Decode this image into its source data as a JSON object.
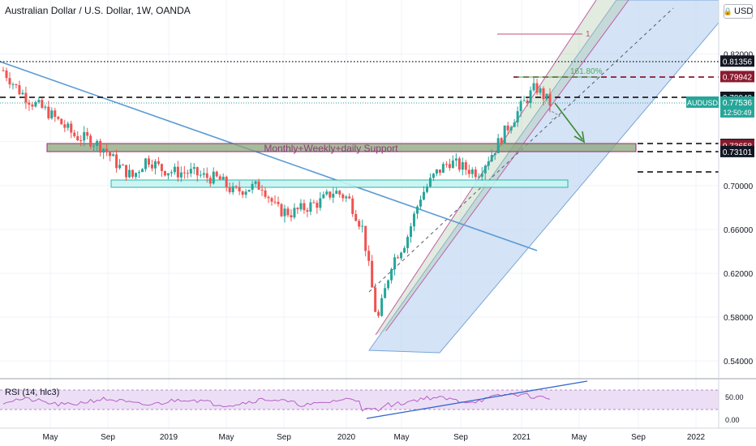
{
  "header": {
    "title": "Australian Dollar / U.S. Dollar, 1W, OANDA",
    "currency_label": "USD"
  },
  "price_axis": {
    "ticks": [
      "0.82000",
      "0.78000",
      "0.74000",
      "0.70000",
      "0.66000",
      "0.62000",
      "0.58000",
      "0.54000"
    ],
    "tick_values": [
      0.82,
      0.78,
      0.74,
      0.7,
      0.66,
      0.62,
      0.58,
      0.54
    ],
    "range": [
      0.515,
      0.855
    ]
  },
  "time_axis": {
    "labels": [
      "May",
      "Sep",
      "2019",
      "May",
      "Sep",
      "2020",
      "May",
      "Sep",
      "2021",
      "May",
      "Sep",
      "2022"
    ]
  },
  "price_tags": [
    {
      "value": "0.81356",
      "style": "dark"
    },
    {
      "value": "0.79942",
      "style": "darkred"
    },
    {
      "value": "0.78049",
      "style": "dark"
    },
    {
      "value": "0.77536",
      "style": "teal",
      "symbol": "AUDUSD",
      "timer": "12:50:49"
    },
    {
      "value": "0.73754",
      "style": "dark"
    },
    {
      "value": "0.73658",
      "style": "darkred"
    },
    {
      "value": "0.73101",
      "style": "dark"
    }
  ],
  "annotations": {
    "support_label": "Monthly+Weekly+daily Support",
    "fib_label": "161.80%",
    "wave_label": "1"
  },
  "rsi": {
    "label": "RSI (14, hlc3)",
    "ticks": [
      "50.00",
      "0.00"
    ]
  },
  "colors": {
    "up": "#26a69a",
    "down": "#ef5350",
    "channel_fill": "#c5daf3",
    "channel_line": "#c060a8",
    "support_fill": "#8aa57a",
    "support_border": "#9c2770",
    "zone_fill": "#c8f3ef",
    "zone_border": "#26b5b0",
    "trend_line": "#5b9bd5",
    "rsi_line": "#b65fc8",
    "rsi_band": "#ecdff5",
    "arrow": "#3c8a2f"
  },
  "chart_data": {
    "type": "candlestick",
    "instrument": "Australian Dollar / U.S. Dollar",
    "timeframe": "1W",
    "source": "OANDA",
    "last_price": 0.77536,
    "horizontal_levels": [
      0.81356,
      0.79942,
      0.78049,
      0.73754,
      0.73658,
      0.73101
    ],
    "close_path": [
      {
        "x": "2018-01",
        "y": 0.805
      },
      {
        "x": "2018-02",
        "y": 0.788
      },
      {
        "x": "2018-03",
        "y": 0.776
      },
      {
        "x": "2018-04",
        "y": 0.768
      },
      {
        "x": "2018-05",
        "y": 0.757
      },
      {
        "x": "2018-06",
        "y": 0.745
      },
      {
        "x": "2018-07",
        "y": 0.742
      },
      {
        "x": "2018-08",
        "y": 0.734
      },
      {
        "x": "2018-09",
        "y": 0.718
      },
      {
        "x": "2018-10",
        "y": 0.708
      },
      {
        "x": "2018-11",
        "y": 0.725
      },
      {
        "x": "2018-12",
        "y": 0.715
      },
      {
        "x": "2019-01",
        "y": 0.712
      },
      {
        "x": "2019-02",
        "y": 0.712
      },
      {
        "x": "2019-03",
        "y": 0.708
      },
      {
        "x": "2019-04",
        "y": 0.706
      },
      {
        "x": "2019-05",
        "y": 0.694
      },
      {
        "x": "2019-06",
        "y": 0.698
      },
      {
        "x": "2019-07",
        "y": 0.7
      },
      {
        "x": "2019-08",
        "y": 0.678
      },
      {
        "x": "2019-09",
        "y": 0.675
      },
      {
        "x": "2019-10",
        "y": 0.68
      },
      {
        "x": "2019-11",
        "y": 0.685
      },
      {
        "x": "2019-12",
        "y": 0.695
      },
      {
        "x": "2020-01",
        "y": 0.688
      },
      {
        "x": "2020-02",
        "y": 0.66
      },
      {
        "x": "2020-03",
        "y": 0.575
      },
      {
        "x": "2020-04",
        "y": 0.63
      },
      {
        "x": "2020-05",
        "y": 0.65
      },
      {
        "x": "2020-06",
        "y": 0.69
      },
      {
        "x": "2020-07",
        "y": 0.71
      },
      {
        "x": "2020-08",
        "y": 0.722
      },
      {
        "x": "2020-09",
        "y": 0.716
      },
      {
        "x": "2020-10",
        "y": 0.712
      },
      {
        "x": "2020-11",
        "y": 0.73
      },
      {
        "x": "2020-12",
        "y": 0.752
      },
      {
        "x": "2021-01",
        "y": 0.772
      },
      {
        "x": "2021-02",
        "y": 0.79
      },
      {
        "x": "2021-03",
        "y": 0.775
      }
    ],
    "rsi_range": [
      0,
      100
    ]
  }
}
